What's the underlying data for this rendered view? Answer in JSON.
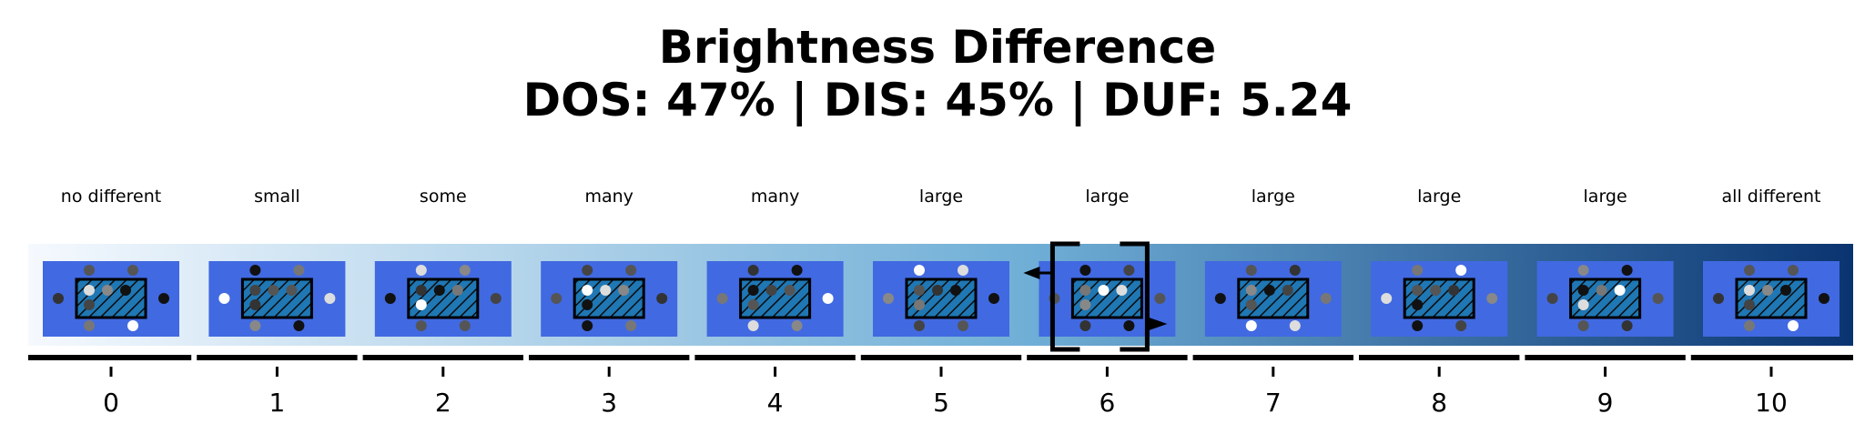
{
  "title": "Brightness Difference",
  "subtitle": "DOS: 47% | DIS: 45% | DUF: 5.24",
  "levels": [
    {
      "tick": "0",
      "label": "no different"
    },
    {
      "tick": "1",
      "label": "small"
    },
    {
      "tick": "2",
      "label": "some"
    },
    {
      "tick": "3",
      "label": "many"
    },
    {
      "tick": "4",
      "label": "many"
    },
    {
      "tick": "5",
      "label": "large"
    },
    {
      "tick": "6",
      "label": "large"
    },
    {
      "tick": "7",
      "label": "large"
    },
    {
      "tick": "8",
      "label": "large"
    },
    {
      "tick": "9",
      "label": "large"
    },
    {
      "tick": "10",
      "label": "all different"
    }
  ],
  "selected_level": 6,
  "colors": {
    "gradient_start": "#f5f9fe",
    "gradient_end": "#0a3470",
    "panel": "#4169e1",
    "center_hatch": "#1f77b4",
    "axis": "#000000",
    "selection_frame": "#000000"
  }
}
